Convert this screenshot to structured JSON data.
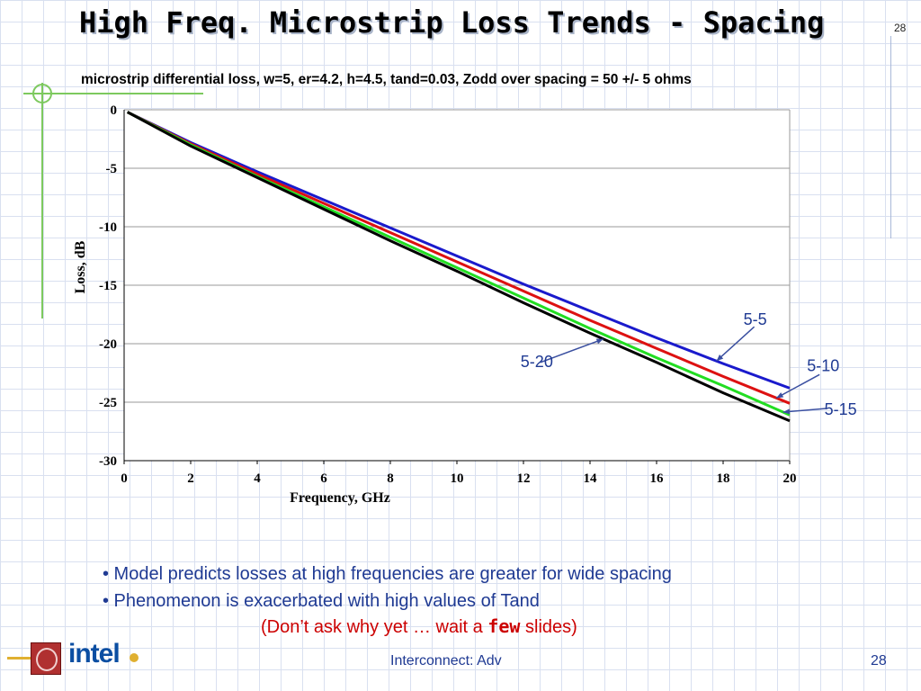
{
  "slide": {
    "title": "High Freq. Microstrip Loss Trends - Spacing",
    "page_top": "28",
    "footer_center": "Interconnect: Adv",
    "footer_page": "28",
    "logo_text": "intel"
  },
  "bullets": [
    "• Model predicts losses at high frequencies are greater for wide spacing",
    "• Phenomenon is exacerbated with high values of Tand"
  ],
  "note": {
    "before": "(Don’t ask why yet … wait a ",
    "mono": "few",
    "after": " slides)"
  },
  "chart_data": {
    "type": "line",
    "title": "microstrip differential loss, w=5, er=4.2, h=4.5, tand=0.03, Zodd over spacing = 50 +/- 5 ohms",
    "xlabel": "Frequency, GHz",
    "ylabel": "Loss, dB",
    "xlim": [
      0,
      20
    ],
    "ylim": [
      -30,
      0
    ],
    "xticks": [
      "0",
      "2",
      "4",
      "6",
      "8",
      "10",
      "12",
      "14",
      "16",
      "18",
      "20"
    ],
    "yticks": [
      "0",
      "-5",
      "-10",
      "-15",
      "-20",
      "-25",
      "-30"
    ],
    "grid": "horizontal",
    "x": [
      0.1,
      2,
      4,
      6,
      8,
      10,
      12,
      14,
      16,
      18,
      20
    ],
    "series": [
      {
        "name": "5-5",
        "color": "#1a1acc",
        "values": [
          -0.2,
          -2.8,
          -5.3,
          -7.7,
          -10.1,
          -12.5,
          -14.9,
          -17.2,
          -19.5,
          -21.7,
          -23.8
        ]
      },
      {
        "name": "5-10",
        "color": "#dd1111",
        "values": [
          -0.2,
          -2.9,
          -5.5,
          -8.0,
          -10.5,
          -13.0,
          -15.5,
          -18.0,
          -20.4,
          -22.8,
          -25.1
        ]
      },
      {
        "name": "5-15",
        "color": "#22dd22",
        "values": [
          -0.2,
          -3.0,
          -5.7,
          -8.3,
          -10.9,
          -13.5,
          -16.1,
          -18.7,
          -21.2,
          -23.6,
          -26.1
        ]
      },
      {
        "name": "5-20",
        "color": "#000000",
        "values": [
          -0.2,
          -3.1,
          -5.8,
          -8.5,
          -11.2,
          -13.8,
          -16.5,
          -19.1,
          -21.6,
          -24.2,
          -26.6
        ]
      }
    ],
    "annotations": [
      {
        "text": "5-5",
        "series": "5-5",
        "at_x": 17.8
      },
      {
        "text": "5-10",
        "series": "5-10",
        "at_x": 19.6
      },
      {
        "text": "5-15",
        "series": "5-15",
        "at_x": 19.8
      },
      {
        "text": "5-20",
        "series": "5-20",
        "at_x": 14.4
      }
    ]
  }
}
